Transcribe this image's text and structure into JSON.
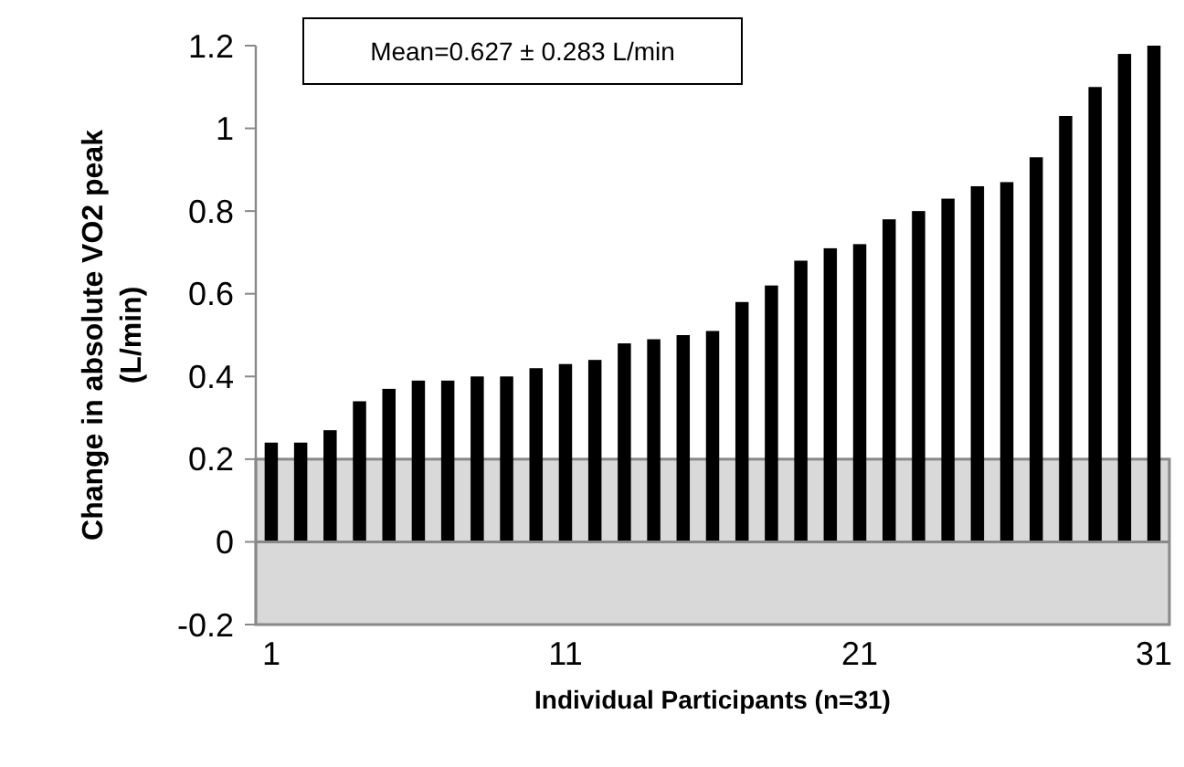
{
  "chart_data": {
    "type": "bar",
    "xlabel": "Individual Participants (n=31)",
    "ylabel": "Change in absolute VO2 peak (L/min)",
    "categories": [
      "1",
      null,
      null,
      null,
      null,
      null,
      null,
      null,
      null,
      null,
      "11",
      null,
      null,
      null,
      null,
      null,
      null,
      null,
      null,
      null,
      "21",
      null,
      null,
      null,
      null,
      null,
      null,
      null,
      null,
      null,
      "31"
    ],
    "values": [
      0.24,
      0.24,
      0.27,
      0.34,
      0.37,
      0.39,
      0.39,
      0.4,
      0.4,
      0.42,
      0.43,
      0.44,
      0.48,
      0.49,
      0.5,
      0.51,
      0.58,
      0.62,
      0.68,
      0.71,
      0.72,
      0.78,
      0.8,
      0.83,
      0.86,
      0.87,
      0.93,
      1.03,
      1.1,
      1.18,
      1.2
    ],
    "color": "#000000",
    "ylim": [
      -0.2,
      1.2
    ],
    "yticks": [
      -0.2,
      0,
      0.2,
      0.4,
      0.6,
      0.8,
      1,
      1.2
    ],
    "bands": [
      {
        "axis": "y",
        "from": -0.2,
        "to": 0.2,
        "color": "#d9d9d9"
      }
    ],
    "annotations": [
      "Mean=0.627 ± 0.283 L/min"
    ]
  }
}
